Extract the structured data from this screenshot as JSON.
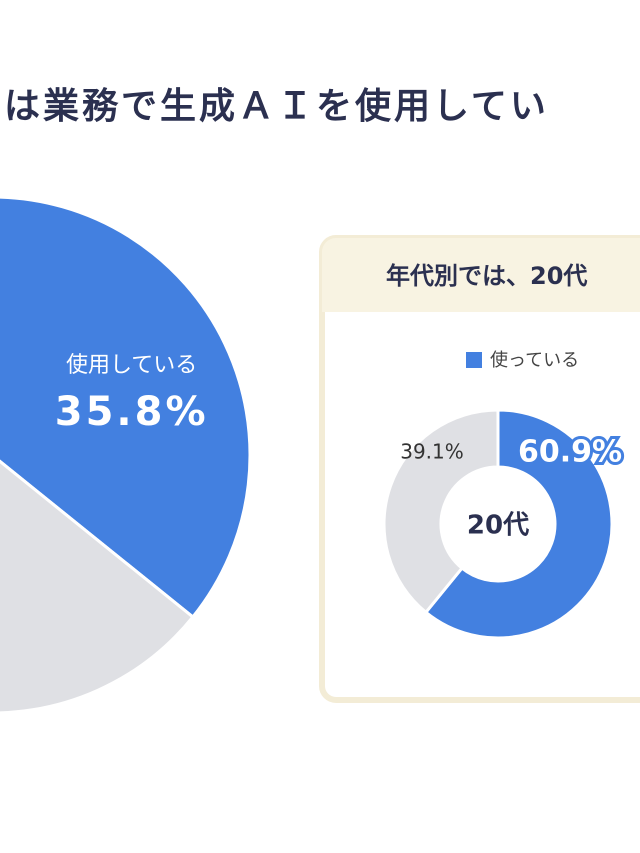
{
  "chart_data": [
    {
      "type": "pie",
      "title": "は業務で生成ＡＩを使用してい",
      "categories": [
        "使用している",
        null
      ],
      "values": [
        35.8,
        64.2
      ],
      "value_labels": [
        "35.8%",
        null
      ],
      "colors": [
        "#4380e0",
        "#dfe0e4"
      ]
    },
    {
      "type": "donut",
      "title": "年代別では、20代",
      "center_label": "20代",
      "categories": [
        "使っている",
        null
      ],
      "values": [
        60.9,
        39.1
      ],
      "value_labels": [
        "60.9%",
        "39.1%"
      ],
      "colors": [
        "#4380e0",
        "#dfe0e4"
      ]
    }
  ]
}
